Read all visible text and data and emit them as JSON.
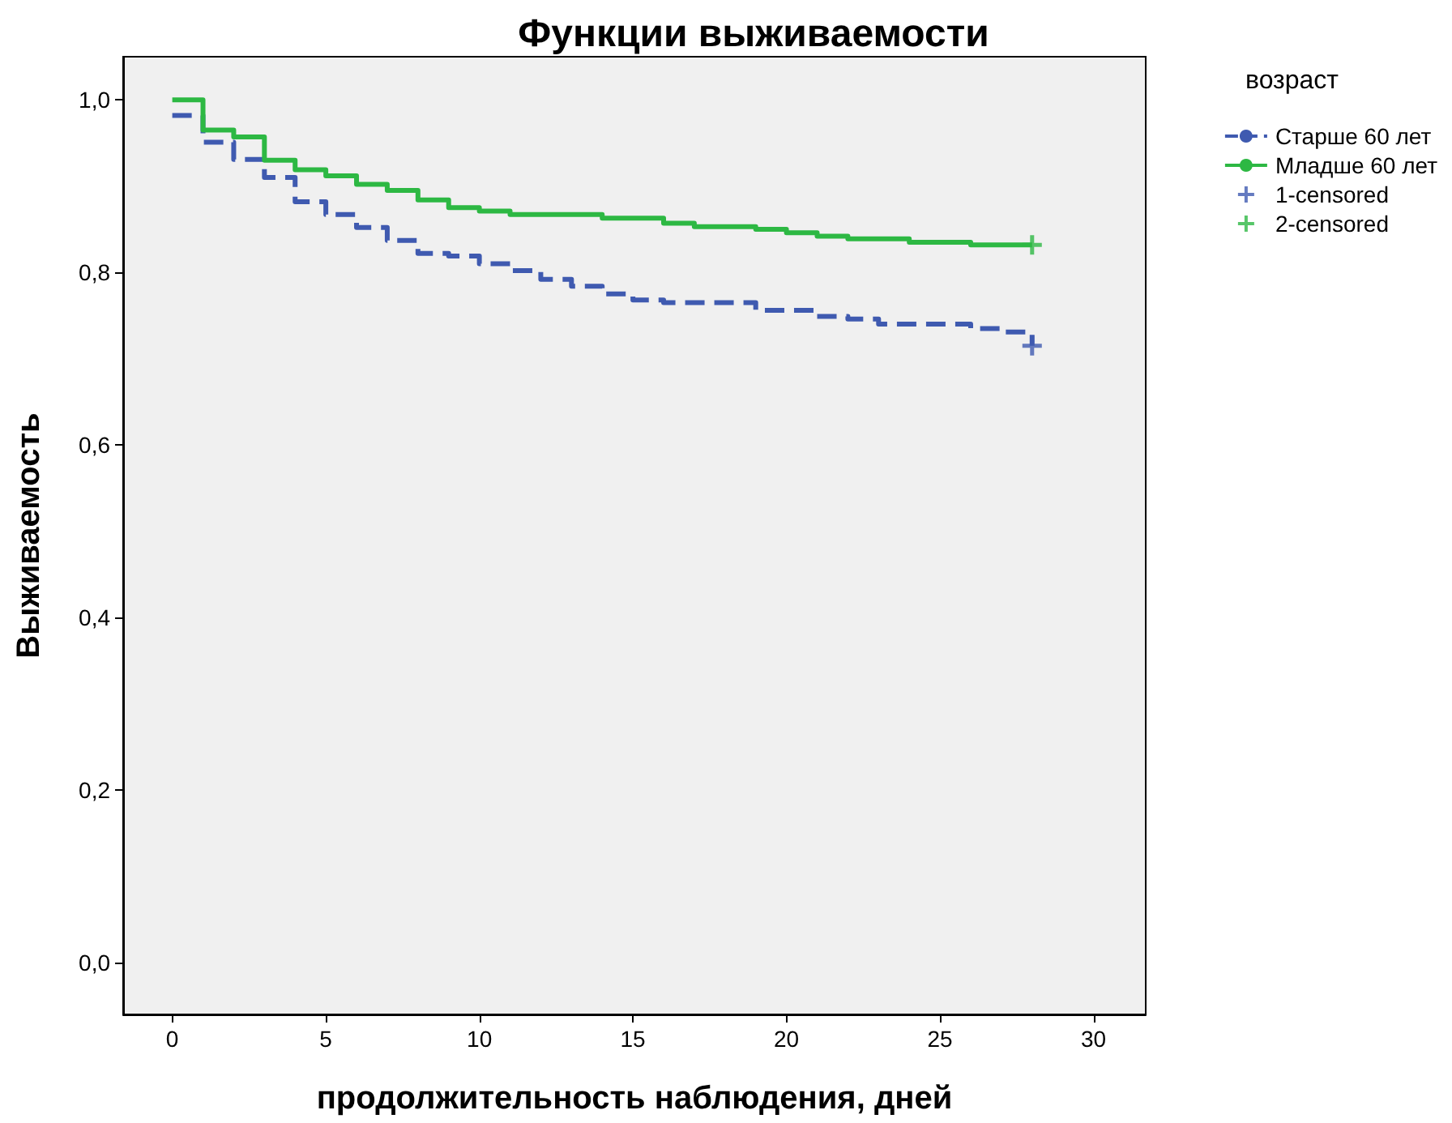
{
  "chart_data": {
    "type": "step",
    "title": "Функции выживаемости",
    "xlabel": "продолжительность наблюдения, дней",
    "ylabel": "Выживаемость",
    "legend_title": "возраст",
    "legend": "top right",
    "grid": false,
    "marker": "none",
    "xlim": [
      -1.6,
      31.7
    ],
    "xticks": [
      0,
      5,
      10,
      15,
      20,
      25,
      30
    ],
    "ylim": [
      -0.06,
      1.05
    ],
    "yticks": [
      {
        "value": 0,
        "label": "0,0"
      },
      {
        "value": 0.2,
        "label": "0,2"
      },
      {
        "value": 0.4,
        "label": "0,4"
      },
      {
        "value": 0.6,
        "label": "0,6"
      },
      {
        "value": 0.8,
        "label": "0,8"
      },
      {
        "value": 1,
        "label": "1,0"
      }
    ],
    "series": [
      {
        "name": "Старше 60 лет",
        "color": "#3f5ab0",
        "line_style": "dashed",
        "x": [
          0,
          1,
          2,
          3,
          4,
          5,
          6,
          7,
          8,
          9,
          10,
          11,
          12,
          13,
          14,
          15,
          16,
          19,
          21,
          22,
          23,
          26,
          27,
          28
        ],
        "values": [
          0.982,
          0.951,
          0.931,
          0.91,
          0.882,
          0.867,
          0.852,
          0.837,
          0.822,
          0.819,
          0.81,
          0.802,
          0.792,
          0.784,
          0.775,
          0.768,
          0.765,
          0.756,
          0.749,
          0.746,
          0.74,
          0.735,
          0.731,
          0.715
        ]
      },
      {
        "name": "Младше 60 лет",
        "color": "#2db843",
        "line_style": "solid",
        "x": [
          0,
          1,
          2,
          3,
          4,
          5,
          6,
          7,
          8,
          9,
          10,
          11,
          14,
          16,
          17,
          19,
          20,
          21,
          22,
          24,
          26,
          28
        ],
        "values": [
          1.0,
          0.965,
          0.957,
          0.93,
          0.919,
          0.912,
          0.902,
          0.895,
          0.884,
          0.875,
          0.871,
          0.867,
          0.863,
          0.857,
          0.853,
          0.85,
          0.846,
          0.842,
          0.839,
          0.835,
          0.832,
          0.832
        ]
      },
      {
        "name": "1-censored",
        "type": "scatter",
        "marker": "cross",
        "color": "#3f5ab0",
        "x": [
          28
        ],
        "values": [
          0.715
        ]
      },
      {
        "name": "2-censored",
        "type": "scatter",
        "marker": "cross",
        "color": "#2db843",
        "x": [
          28
        ],
        "values": [
          0.832
        ]
      }
    ]
  }
}
